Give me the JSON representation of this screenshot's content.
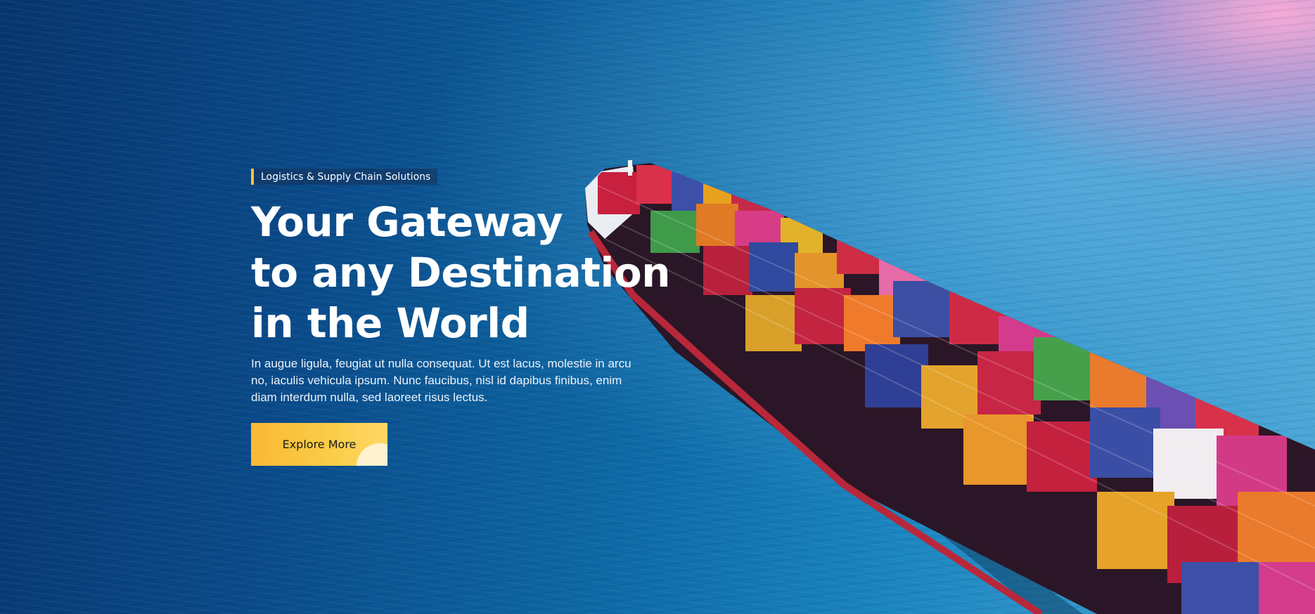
{
  "hero": {
    "tag": "Logistics & Supply Chain Solutions",
    "headline_lines": [
      "Your Gateway",
      "to any Destination",
      "in the World"
    ],
    "description": "In augue ligula, feugiat ut nulla consequat. Ut est lacus, molestie in arcu no, iaculis vehicula ipsum. Nunc faucibus, nisl id dapibus finibus, enim diam interdum nulla, sed laoreet risus lectus.",
    "cta_label": "Explore More"
  },
  "colors": {
    "accent": "#f9c23a",
    "sea_dark": "#07356e",
    "sea_light": "#4aa6d6",
    "sunset_pink": "#ffaad7",
    "text": "#ffffff"
  },
  "background_image": "aerial-container-ship-icon"
}
